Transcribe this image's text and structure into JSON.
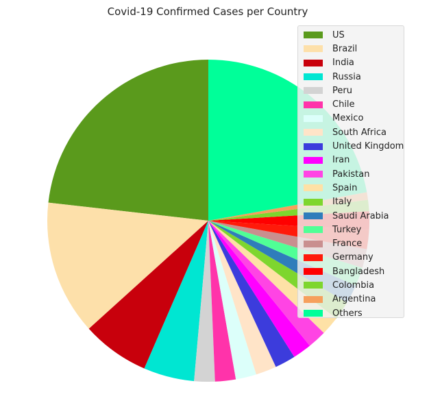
{
  "chart_data": {
    "type": "pie",
    "title": "Covid-19 Confirmed Cases per Country",
    "legend_position": "upper-right",
    "slices": [
      {
        "label": "US",
        "value": 24.6,
        "color": "#5a9a1c"
      },
      {
        "label": "Brazil",
        "value": 14.3,
        "color": "#fde0aa"
      },
      {
        "label": "India",
        "value": 7.2,
        "color": "#c8000c"
      },
      {
        "label": "Russia",
        "value": 5.4,
        "color": "#00e6d2"
      },
      {
        "label": "Peru",
        "value": 2.2,
        "color": "#d3d3d3"
      },
      {
        "label": "Chile",
        "value": 2.2,
        "color": "#ff33aa"
      },
      {
        "label": "Mexico",
        "value": 2.2,
        "color": "#dcfffa"
      },
      {
        "label": "South Africa",
        "value": 2.2,
        "color": "#ffe4c8"
      },
      {
        "label": "United Kingdom",
        "value": 2.2,
        "color": "#3c3cdc"
      },
      {
        "label": "Iran",
        "value": 2.0,
        "color": "#ff00ff"
      },
      {
        "label": "Pakistan",
        "value": 2.0,
        "color": "#ff44e4"
      },
      {
        "label": "Spain",
        "value": 2.0,
        "color": "#fee1a6"
      },
      {
        "label": "Italy",
        "value": 2.0,
        "color": "#7ed62e"
      },
      {
        "label": "Saudi Arabia",
        "value": 2.0,
        "color": "#2f7dbb"
      },
      {
        "label": "Turkey",
        "value": 2.0,
        "color": "#50ff96"
      },
      {
        "label": "France",
        "value": 2.0,
        "color": "#c98f8f"
      },
      {
        "label": "Germany",
        "value": 2.0,
        "color": "#ff1a0a"
      },
      {
        "label": "Bangladesh",
        "value": 2.0,
        "color": "#ff0000"
      },
      {
        "label": "Colombia",
        "value": 1.2,
        "color": "#7ed62e"
      },
      {
        "label": "Argentina",
        "value": 0.8,
        "color": "#f6a05c"
      },
      {
        "label": "Others",
        "value": 23.5,
        "color": "#00ff99"
      }
    ]
  }
}
